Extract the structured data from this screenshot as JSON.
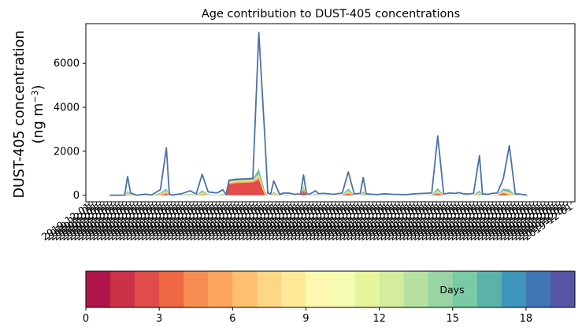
{
  "chart_data": [
    {
      "type": "area",
      "title": "Age contribution to DUST-405 concentrations",
      "ylabel": "DUST-405 concentration",
      "ylabel_unit_prefix": "(ng m",
      "ylabel_unit_exp": "−3",
      "ylabel_unit_suffix": ")",
      "xlabel": "",
      "ylim": [
        -300,
        7800
      ],
      "yticks": [
        0,
        2000,
        4000,
        6000
      ],
      "x_tick_count": 130,
      "x_tick_label": "2019-12-01",
      "grid": false,
      "series": [
        {
          "name": "",
          "x": [
            0,
            5,
            6,
            7,
            8,
            9,
            12,
            14,
            17,
            19,
            20,
            21,
            22,
            24,
            27,
            29,
            31,
            33,
            36,
            38,
            39,
            40,
            41,
            42,
            45,
            48,
            50,
            52,
            53,
            54,
            55,
            57,
            58,
            60,
            62,
            64,
            65,
            66,
            67,
            69,
            70,
            72,
            75,
            78,
            80,
            82,
            84,
            85,
            86,
            88,
            90,
            92,
            95,
            98,
            100,
            102,
            105,
            108,
            110,
            112,
            114,
            116,
            117,
            118,
            119,
            120,
            122,
            124,
            125,
            126,
            127,
            128,
            130,
            132,
            134,
            136,
            138,
            140
          ],
          "values": [
            0,
            0,
            850,
            100,
            50,
            0,
            50,
            10,
            250,
            2150,
            50,
            0,
            30,
            60,
            200,
            50,
            950,
            150,
            100,
            250,
            20,
            680,
            700,
            720,
            740,
            760,
            7400,
            2700,
            100,
            60,
            650,
            30,
            90,
            100,
            40,
            60,
            920,
            60,
            40,
            200,
            70,
            80,
            40,
            100,
            1060,
            60,
            80,
            800,
            60,
            40,
            30,
            60,
            40,
            30,
            30,
            60,
            80,
            100,
            2700,
            60,
            100,
            80,
            120,
            80,
            60,
            50,
            80,
            1800,
            60,
            50,
            40,
            80,
            100,
            760,
            2250,
            60,
            40,
            0
          ]
        }
      ],
      "age_bands": [
        {
          "color": "#e34a4a",
          "values": [
            0,
            0,
            0,
            0,
            0,
            0,
            0,
            0,
            0,
            60,
            0,
            0,
            0,
            0,
            0,
            0,
            0,
            0,
            0,
            0,
            0,
            500,
            520,
            540,
            560,
            580,
            700,
            0,
            0,
            0,
            0,
            0,
            0,
            0,
            0,
            0,
            200,
            0,
            0,
            0,
            0,
            0,
            0,
            0,
            60,
            0,
            0,
            0,
            0,
            0,
            0,
            0,
            0,
            0,
            0,
            0,
            0,
            0,
            60,
            0,
            0,
            0,
            0,
            0,
            0,
            0,
            0,
            0,
            0,
            0,
            0,
            0,
            0,
            80,
            0,
            0,
            0,
            0
          ]
        },
        {
          "color": "#fdae61",
          "values": [
            0,
            0,
            60,
            0,
            0,
            0,
            0,
            0,
            40,
            120,
            0,
            0,
            0,
            0,
            20,
            0,
            80,
            0,
            0,
            20,
            0,
            560,
            580,
            600,
            620,
            640,
            820,
            60,
            0,
            0,
            50,
            0,
            0,
            0,
            0,
            0,
            280,
            0,
            0,
            20,
            0,
            0,
            0,
            0,
            120,
            0,
            0,
            40,
            0,
            0,
            0,
            0,
            0,
            0,
            0,
            0,
            0,
            0,
            120,
            0,
            0,
            0,
            0,
            0,
            0,
            0,
            0,
            60,
            0,
            0,
            0,
            0,
            0,
            120,
            60,
            0,
            0,
            0
          ]
        },
        {
          "color": "#fee08b",
          "values": [
            0,
            0,
            120,
            20,
            0,
            0,
            0,
            0,
            60,
            200,
            0,
            0,
            0,
            0,
            40,
            0,
            140,
            20,
            0,
            40,
            0,
            620,
            640,
            660,
            680,
            700,
            950,
            120,
            0,
            0,
            90,
            0,
            20,
            0,
            0,
            0,
            350,
            0,
            0,
            40,
            0,
            0,
            0,
            0,
            200,
            0,
            0,
            100,
            0,
            0,
            0,
            0,
            0,
            0,
            0,
            0,
            0,
            0,
            200,
            0,
            0,
            0,
            0,
            0,
            0,
            0,
            0,
            120,
            0,
            0,
            0,
            0,
            0,
            200,
            140,
            0,
            0,
            0
          ]
        },
        {
          "color": "#66c2a5",
          "values": [
            0,
            0,
            200,
            40,
            10,
            0,
            10,
            0,
            100,
            300,
            10,
            0,
            0,
            10,
            60,
            10,
            220,
            40,
            10,
            60,
            0,
            660,
            680,
            700,
            720,
            740,
            1200,
            200,
            20,
            10,
            140,
            0,
            40,
            20,
            0,
            10,
            420,
            10,
            0,
            60,
            10,
            10,
            0,
            20,
            300,
            10,
            10,
            180,
            10,
            0,
            0,
            10,
            0,
            0,
            0,
            10,
            10,
            20,
            320,
            10,
            20,
            10,
            20,
            10,
            10,
            0,
            10,
            220,
            10,
            10,
            0,
            10,
            20,
            300,
            260,
            10,
            0,
            0
          ]
        }
      ]
    },
    {
      "type": "colorbar",
      "label": "Days",
      "range": [
        0,
        20
      ],
      "ticks": [
        0,
        3,
        6,
        9,
        12,
        15,
        18
      ],
      "colors": [
        "#b0154b",
        "#cc3148",
        "#e04c4a",
        "#f06744",
        "#f88d51",
        "#fca55d",
        "#febf6e",
        "#fed685",
        "#fee999",
        "#fef7b0",
        "#f6fbb2",
        "#e6f59d",
        "#d3ed9c",
        "#b5e1a1",
        "#99d5a4",
        "#7acba5",
        "#5bb2a9",
        "#3e94b9",
        "#3f74b5",
        "#5655a5"
      ]
    }
  ]
}
